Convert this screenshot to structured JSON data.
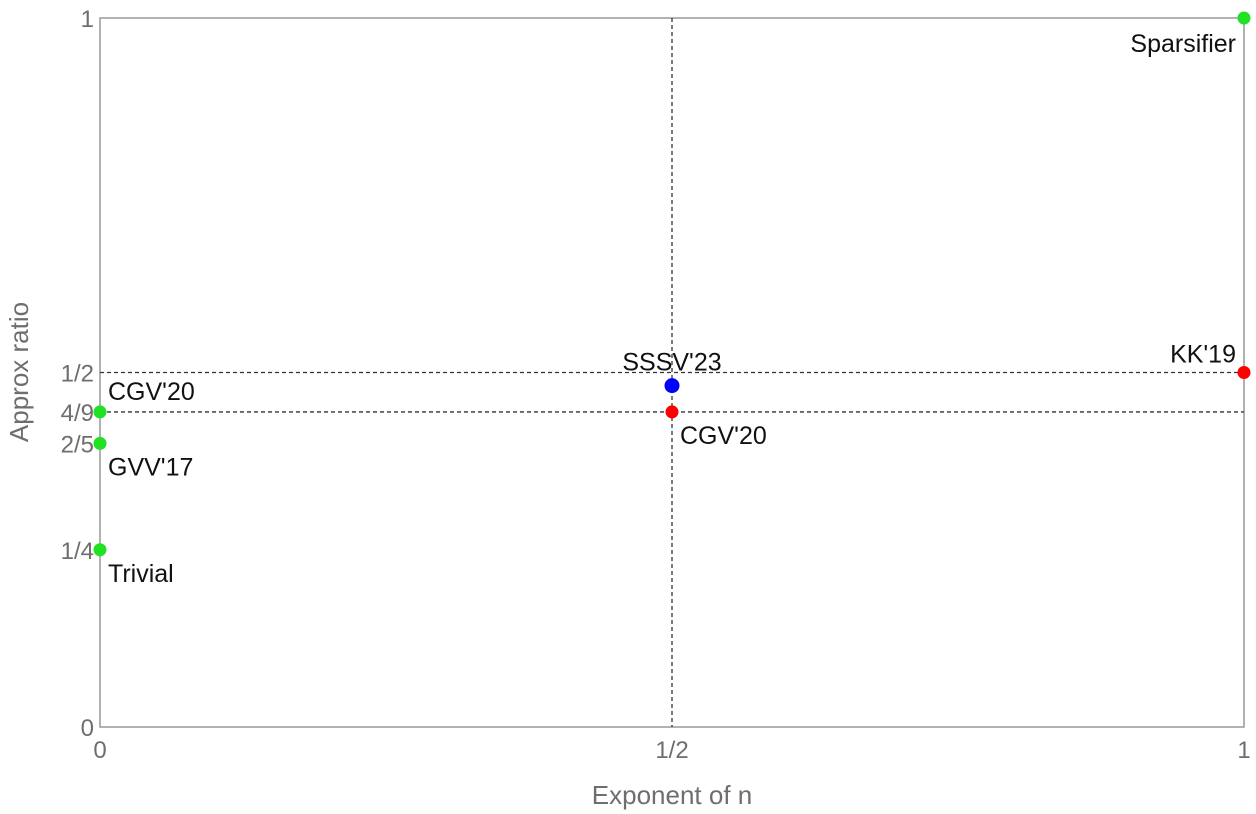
{
  "chart_data": {
    "type": "scatter",
    "title": "",
    "xlabel": "Exponent of n",
    "ylabel": "Approx ratio",
    "xlim": [
      0,
      1
    ],
    "ylim": [
      0,
      1
    ],
    "grid": false,
    "x_ticks": [
      {
        "value": 0,
        "label": "0"
      },
      {
        "value": 0.5,
        "label": "1/2"
      },
      {
        "value": 1,
        "label": "1"
      }
    ],
    "y_ticks": [
      {
        "value": 0,
        "label": "0"
      },
      {
        "value": 0.25,
        "label": "1/4"
      },
      {
        "value": 0.4,
        "label": "2/5"
      },
      {
        "value": 0.4444,
        "label": "4/9"
      },
      {
        "value": 0.5,
        "label": "1/2"
      },
      {
        "value": 1,
        "label": "1"
      }
    ],
    "reference_lines": [
      {
        "orientation": "vertical",
        "value": 0.5,
        "style": "dashed"
      },
      {
        "orientation": "horizontal",
        "value": 0.5,
        "style": "dashed"
      },
      {
        "orientation": "horizontal",
        "value": 0.4444,
        "style": "dashed"
      }
    ],
    "points": [
      {
        "x": 0,
        "y": 0.25,
        "label": "Trivial",
        "color": "#22e022",
        "label_pos": "below-right"
      },
      {
        "x": 0,
        "y": 0.4,
        "label": "GVV'17",
        "color": "#22e022",
        "label_pos": "below-right"
      },
      {
        "x": 0,
        "y": 0.4444,
        "label": "CGV'20",
        "color": "#22e022",
        "label_pos": "above-right"
      },
      {
        "x": 0.5,
        "y": 0.4444,
        "label": "CGV'20",
        "color": "#ff0000",
        "label_pos": "below-right"
      },
      {
        "x": 0.5,
        "y": 0.4815,
        "label": "SSSV'23",
        "color": "#0000ff",
        "label_pos": "above"
      },
      {
        "x": 1,
        "y": 0.5,
        "label": "KK'19",
        "color": "#ff0000",
        "label_pos": "above-left"
      },
      {
        "x": 1,
        "y": 1,
        "label": "Sparsifier",
        "color": "#22e022",
        "label_pos": "below-left"
      }
    ]
  }
}
